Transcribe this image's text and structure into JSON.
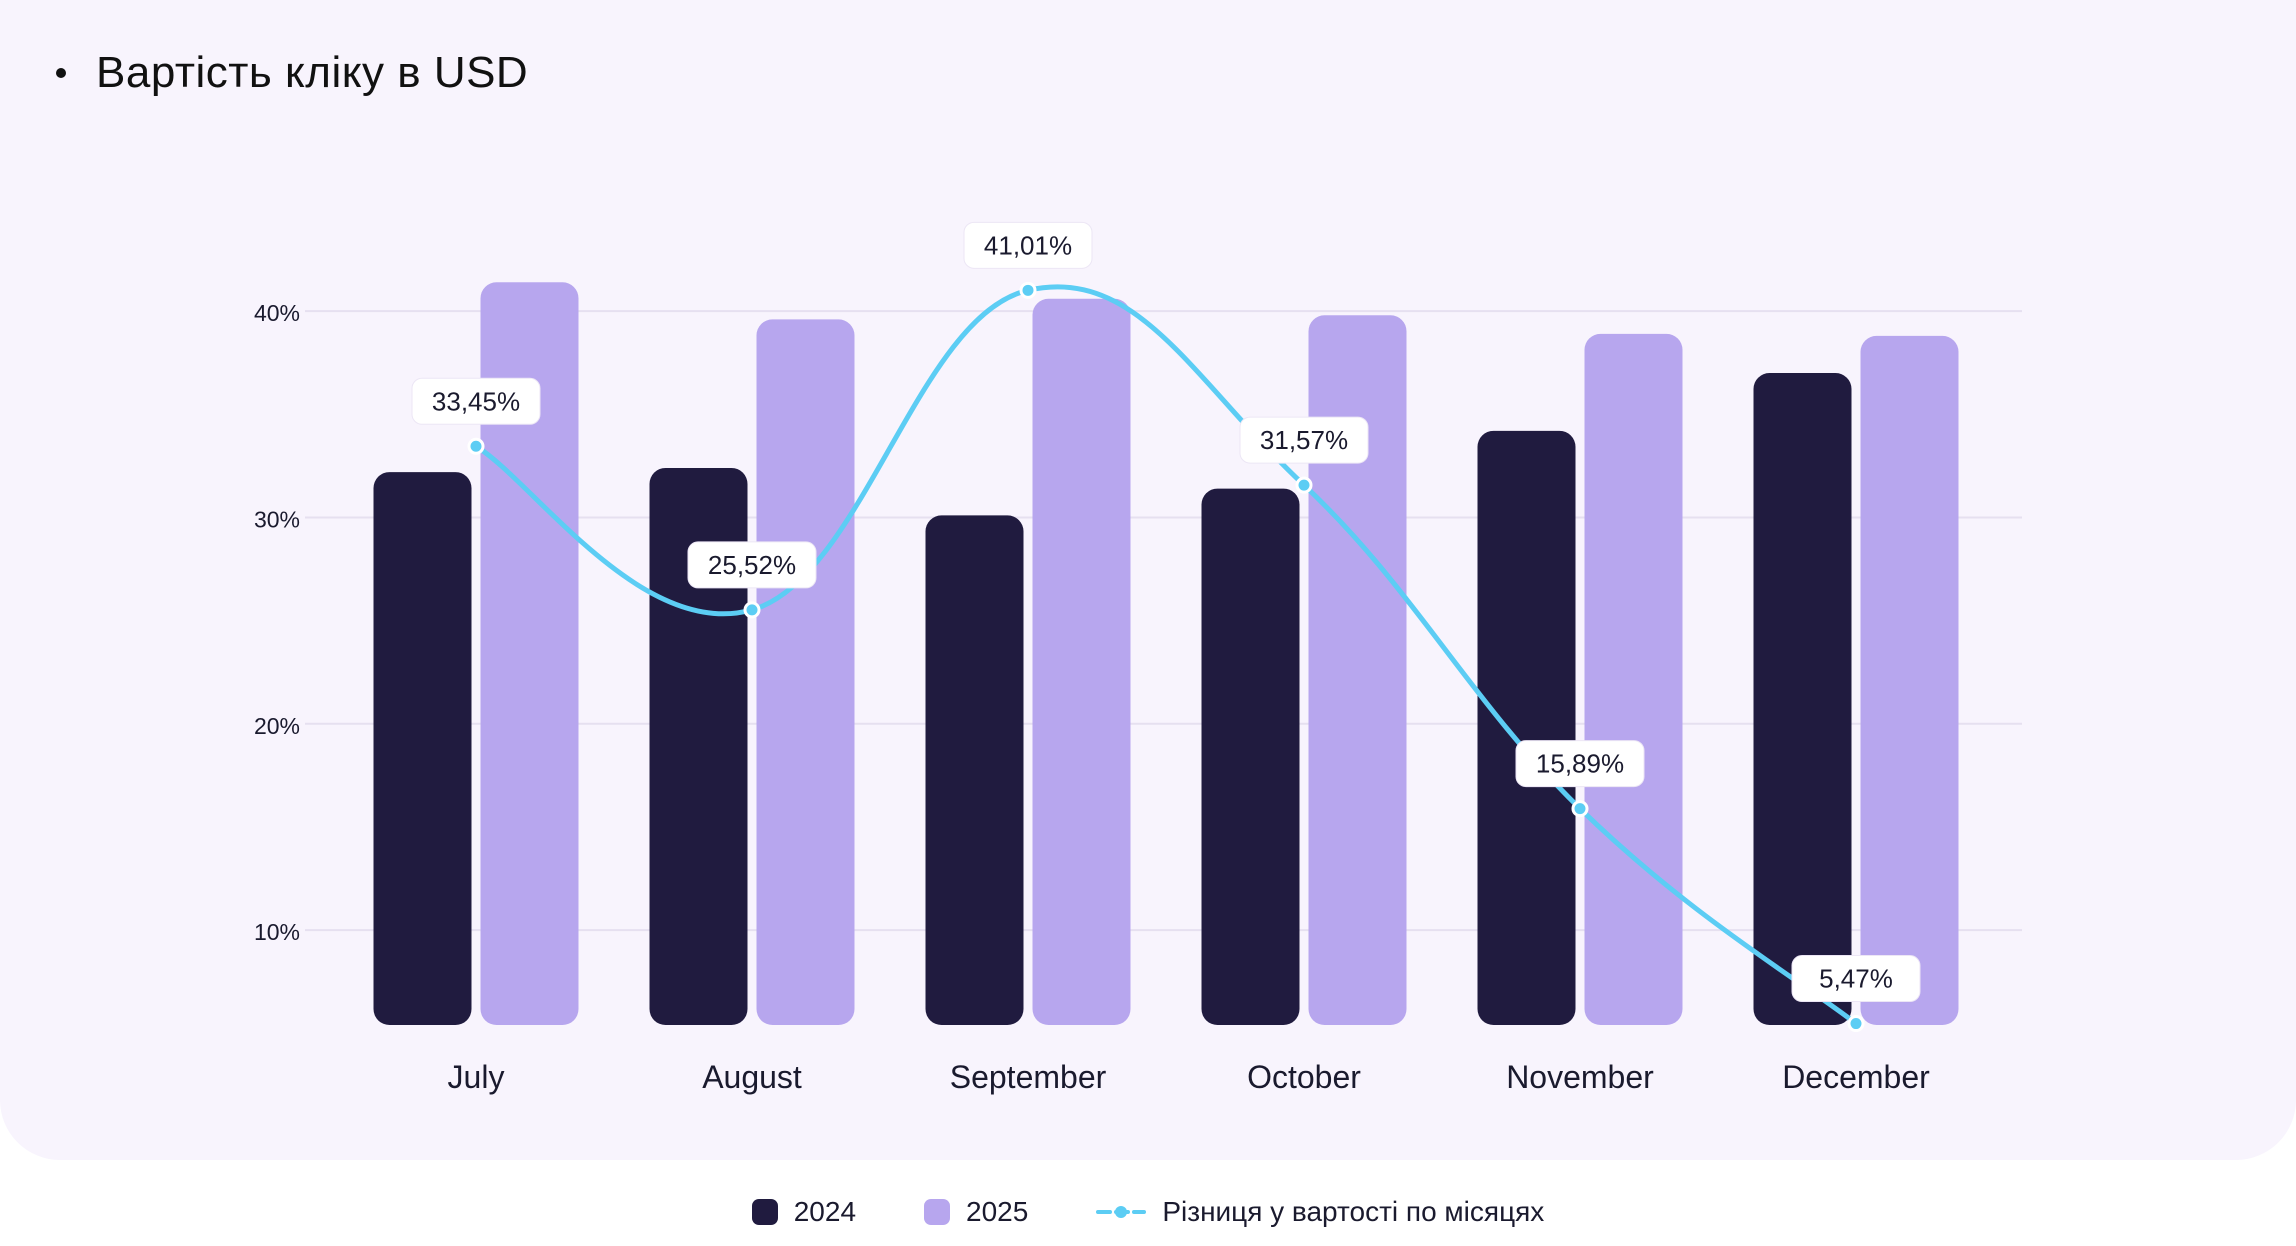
{
  "title": "Вартість кліку в USD",
  "colors": {
    "bar2024": "#201b3f",
    "bar2025": "#b7a6ee",
    "line": "#5ccdf4",
    "grid": "#e6e0f0",
    "card": "#f8f4fd"
  },
  "chart_data": {
    "type": "bar",
    "title": "Вартість кліку в USD",
    "categories": [
      "July",
      "August",
      "September",
      "October",
      "November",
      "December"
    ],
    "series": [
      {
        "name": "2024",
        "values": [
          32.2,
          32.4,
          30.1,
          31.4,
          34.2,
          37.0
        ]
      },
      {
        "name": "2025",
        "values": [
          41.4,
          39.6,
          40.6,
          39.8,
          38.9,
          38.8
        ]
      }
    ],
    "line_series": {
      "name": "Різниця у вартості по місяцях",
      "values": [
        33.45,
        25.52,
        41.01,
        31.57,
        15.89,
        5.47
      ],
      "labels": [
        "33,45%",
        "25,52%",
        "41,01%",
        "31,57%",
        "15,89%",
        "5,47%"
      ]
    },
    "yticks": [
      10,
      20,
      30,
      40
    ],
    "ytick_labels": [
      "10%",
      "20%",
      "30%",
      "40%"
    ],
    "ylim": [
      5.4,
      45
    ],
    "grid": true,
    "legend_position": "bottom-center"
  },
  "legend": [
    {
      "label": "2024"
    },
    {
      "label": "2025"
    },
    {
      "label": "Різниця у вартості по місяцях"
    }
  ]
}
